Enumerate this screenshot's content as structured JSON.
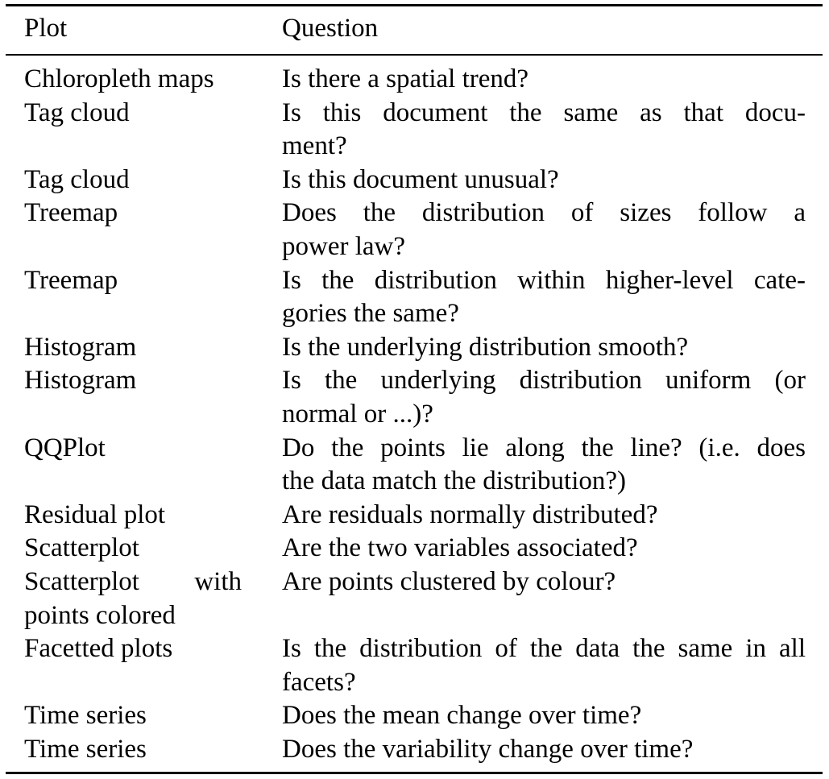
{
  "table": {
    "headers": {
      "plot": "Plot",
      "question": "Question"
    },
    "rows": [
      {
        "plot": [
          "Chloropleth maps"
        ],
        "question": [
          "Is there a spatial trend?"
        ]
      },
      {
        "plot": [
          "Tag cloud"
        ],
        "question": [
          "Is this document the same as that docu-",
          "ment?"
        ]
      },
      {
        "plot": [
          "Tag cloud"
        ],
        "question": [
          "Is this document unusual?"
        ]
      },
      {
        "plot": [
          "Treemap"
        ],
        "question": [
          "Does the distribution of sizes follow a",
          "power law?"
        ]
      },
      {
        "plot": [
          "Treemap"
        ],
        "question": [
          "Is the distribution within higher-level cate-",
          "gories the same?"
        ]
      },
      {
        "plot": [
          "Histogram"
        ],
        "question": [
          "Is the underlying distribution smooth?"
        ]
      },
      {
        "plot": [
          "Histogram"
        ],
        "question": [
          "Is the underlying distribution uniform (or",
          "normal or ...)?"
        ]
      },
      {
        "plot": [
          "QQPlot"
        ],
        "question": [
          "Do the points lie along the line? (i.e. does",
          "the data match the distribution?)"
        ]
      },
      {
        "plot": [
          "Residual plot"
        ],
        "question": [
          "Are residuals normally distributed?"
        ]
      },
      {
        "plot": [
          "Scatterplot"
        ],
        "question": [
          "Are the two variables associated?"
        ]
      },
      {
        "plot": [
          "Scatterplot with",
          "points colored"
        ],
        "question": [
          "Are points clustered by colour?"
        ]
      },
      {
        "plot": [
          "Facetted plots"
        ],
        "question": [
          "Is the distribution of the data the same in all",
          "facets?"
        ]
      },
      {
        "plot": [
          "Time series"
        ],
        "question": [
          "Does the mean change over time?"
        ]
      },
      {
        "plot": [
          "Time series"
        ],
        "question": [
          "Does the variability change over time?"
        ]
      }
    ]
  }
}
